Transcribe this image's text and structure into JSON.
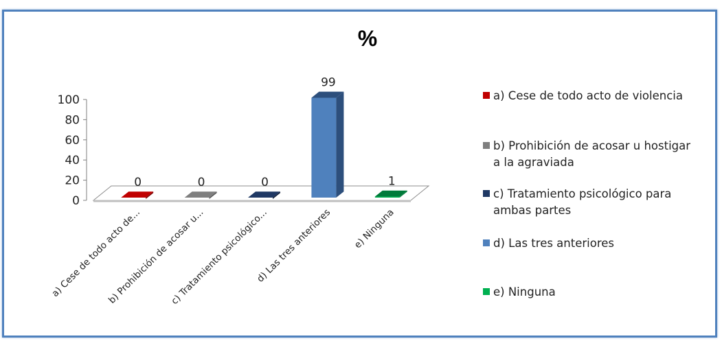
{
  "chart_data": {
    "type": "bar",
    "title": "%",
    "categories": [
      "a) Cese de todo acto de...",
      "b) Prohibición de acosar u...",
      "c) Tratamiento psicológico...",
      "d) Las tres anteriores",
      "e) Ninguna"
    ],
    "values": [
      0,
      0,
      0,
      99,
      1
    ],
    "ylim": [
      0,
      100
    ],
    "yticks": [
      0,
      20,
      40,
      60,
      80,
      100
    ],
    "xlabel": "",
    "ylabel": "",
    "grid": false,
    "style": "3d",
    "legend_position": "right",
    "legend": [
      "a) Cese de todo acto de violencia",
      "b) Prohibición de acosar u hostigar a la agraviada",
      "c) Tratamiento psicológico para ambas partes",
      "d) Las tres anteriores",
      "e) Ninguna"
    ],
    "colors": [
      "#c00000",
      "#7f7f7f",
      "#1f3864",
      "#4f81bd",
      "#00b050"
    ],
    "side_colors": [
      "#7a0000",
      "#555555",
      "#0f1d38",
      "#2d4f7c",
      "#007a3a"
    ]
  },
  "frame_color": "#4f81bd"
}
